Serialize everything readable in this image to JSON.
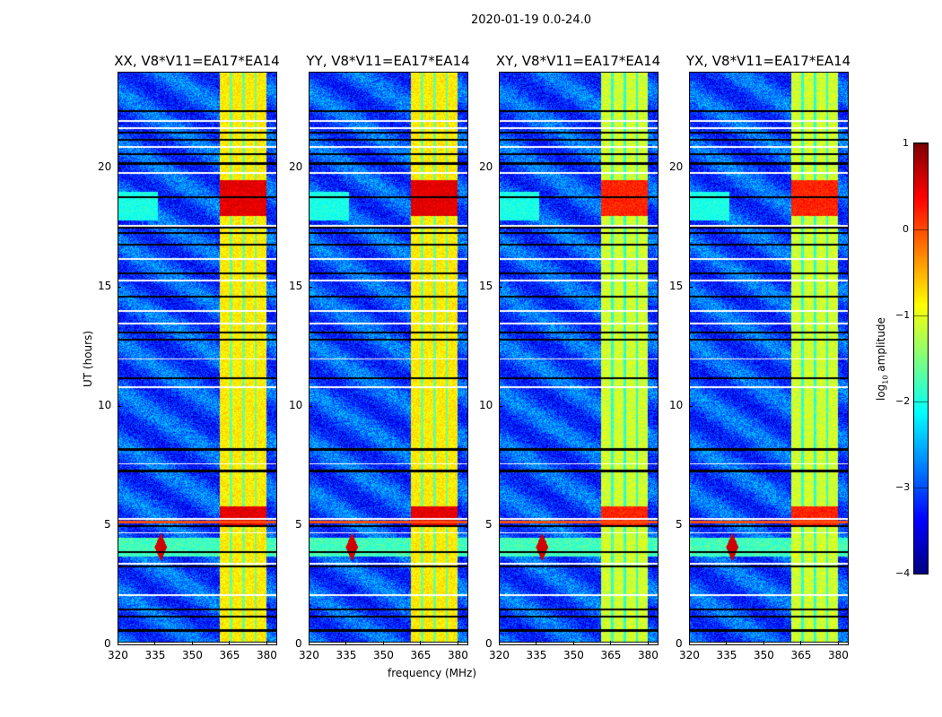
{
  "suptitle": "2020-01-19 0.0-24.0",
  "chart_data": {
    "type": "heatmap",
    "xlabel": "frequency (MHz)",
    "ylabel": "UT (hours)",
    "xlim": [
      320,
      384
    ],
    "ylim": [
      0,
      24
    ],
    "xticks": [
      320,
      335,
      350,
      365,
      380
    ],
    "yticks": [
      0,
      5,
      10,
      15,
      20
    ],
    "colormap": "jet",
    "panels": [
      {
        "title": "XX, V8*V11=EA17*EA14"
      },
      {
        "title": "YY, V8*V11=EA17*EA14"
      },
      {
        "title": "XY, V8*V11=EA17*EA14"
      },
      {
        "title": "YX, V8*V11=EA17*EA14"
      }
    ],
    "colorbar": {
      "label_prefix": "log",
      "label_sub": "10",
      "label_suffix": " amplitude",
      "range": [
        -4,
        1
      ],
      "ticks": [
        "1",
        "0",
        "−1",
        "−2",
        "−3",
        "−4"
      ],
      "tick_values": [
        1,
        0,
        -1,
        -2,
        -3,
        -4
      ]
    },
    "features": {
      "bright_band_mhz": [
        361,
        380
      ],
      "band_gaps_mhz": [
        365.5,
        370.5,
        375.5
      ],
      "strong_emission_hours": [
        [
          18.0,
          19.5
        ],
        [
          5.0,
          5.8
        ]
      ],
      "rfi_burst": {
        "freq_mhz": 337,
        "hours": [
          3.6,
          4.6
        ]
      },
      "background_level": -3,
      "band_level": -0.8,
      "peak_level": 0.5
    }
  }
}
